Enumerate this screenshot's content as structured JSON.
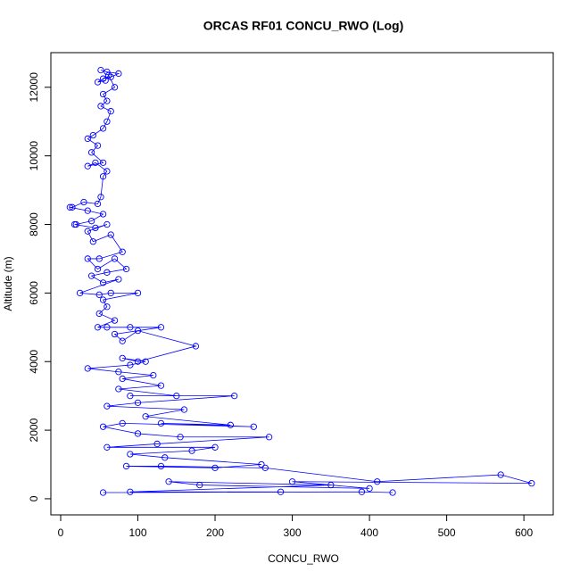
{
  "chart_data": {
    "type": "line",
    "title": "ORCAS RF01 CONCU_RWO (Log)",
    "x_label": "CONCU_RWO",
    "y_label": "Altitude (m)",
    "color": "#0000ff",
    "markers": true,
    "xlim": [
      -12.7,
      638
    ],
    "ylim": [
      -470,
      13010
    ],
    "xticks": [
      0,
      100,
      200,
      300,
      400,
      500,
      600
    ],
    "yticks": [
      0,
      2000,
      4000,
      6000,
      8000,
      10000,
      12000
    ],
    "series": [
      {
        "name": "CONCU_RWO",
        "color": "#0000ff",
        "x": [
          52,
          60,
          75,
          65,
          55,
          48,
          58,
          62,
          70,
          55,
          60,
          52,
          65,
          60,
          55,
          42,
          35,
          48,
          40,
          55,
          35,
          45,
          60,
          55,
          52,
          48,
          30,
          15,
          12,
          35,
          55,
          40,
          20,
          18,
          45,
          60,
          35,
          42,
          65,
          80,
          50,
          35,
          48,
          70,
          85,
          60,
          40,
          55,
          75,
          25,
          50,
          65,
          100,
          55,
          60,
          50,
          70,
          48,
          60,
          90,
          130,
          70,
          80,
          100,
          175,
          100,
          80,
          110,
          90,
          35,
          75,
          120,
          80,
          130,
          75,
          150,
          90,
          225,
          100,
          60,
          160,
          110,
          220,
          130,
          250,
          80,
          55,
          100,
          155,
          270,
          125,
          60,
          200,
          170,
          90,
          135,
          260,
          200,
          85,
          130,
          265,
          410,
          570,
          610,
          300,
          400,
          180,
          140,
          350,
          90,
          285,
          55,
          390,
          430
        ],
        "values": [
          12500,
          12450,
          12400,
          12300,
          12250,
          12150,
          12200,
          12350,
          12000,
          11800,
          11600,
          11450,
          11300,
          11000,
          10800,
          10600,
          10500,
          10300,
          10100,
          9800,
          9700,
          9800,
          9550,
          9400,
          8800,
          8600,
          8650,
          8500,
          8500,
          8400,
          8300,
          8100,
          8000,
          8000,
          7900,
          8000,
          7800,
          7500,
          7700,
          7200,
          7000,
          7000,
          6700,
          7000,
          6700,
          6600,
          6500,
          6300,
          6400,
          6000,
          5950,
          6000,
          6000,
          5800,
          5600,
          5400,
          5200,
          5000,
          5000,
          5000,
          5000,
          4800,
          4600,
          4900,
          4450,
          4000,
          4100,
          4000,
          3900,
          3800,
          3700,
          3600,
          3500,
          3300,
          3200,
          3000,
          3000,
          3000,
          2800,
          2700,
          2600,
          2400,
          2150,
          2200,
          2100,
          2200,
          2100,
          1900,
          1800,
          1800,
          1600,
          1500,
          1500,
          1400,
          1300,
          1200,
          1000,
          900,
          950,
          950,
          900,
          500,
          700,
          450,
          500,
          300,
          400,
          500,
          400,
          200,
          200,
          180,
          200,
          180
        ]
      }
    ]
  }
}
